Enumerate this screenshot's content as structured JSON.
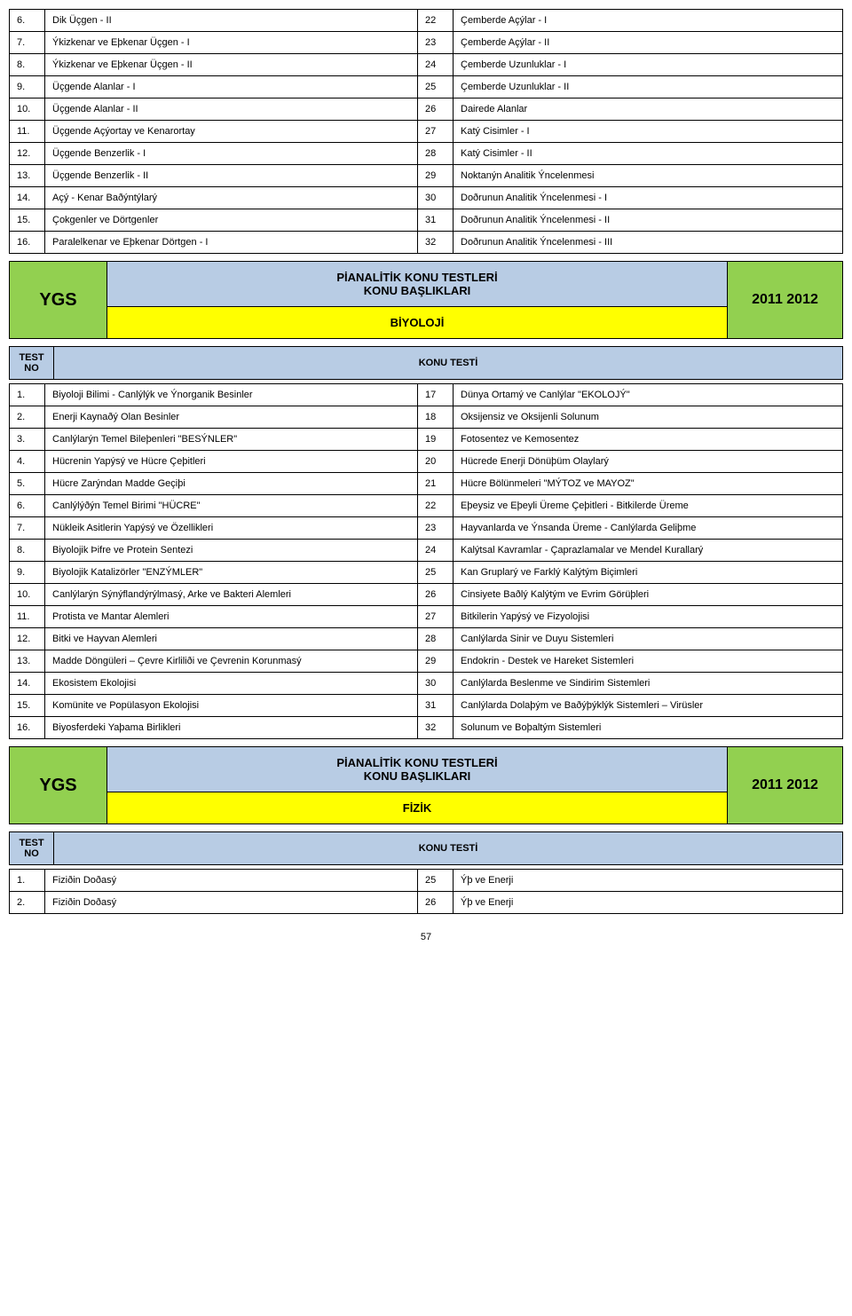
{
  "colors": {
    "green": "#92d050",
    "blue": "#b8cce4",
    "yellow": "#ffff00",
    "white": "#ffffff",
    "black": "#000000"
  },
  "geometry": {
    "rows": [
      {
        "n": "6.",
        "left": "Dik Üçgen - II",
        "r": "22",
        "right": "Çemberde Açýlar - I"
      },
      {
        "n": "7.",
        "left": "Ýkizkenar ve Eþkenar Üçgen - I",
        "r": "23",
        "right": "Çemberde Açýlar - II"
      },
      {
        "n": "8.",
        "left": "Ýkizkenar ve Eþkenar Üçgen - II",
        "r": "24",
        "right": "Çemberde Uzunluklar - I"
      },
      {
        "n": "9.",
        "left": "Üçgende Alanlar - I",
        "r": "25",
        "right": "Çemberde Uzunluklar - II"
      },
      {
        "n": "10.",
        "left": "Üçgende Alanlar - II",
        "r": "26",
        "right": "Dairede Alanlar"
      },
      {
        "n": "11.",
        "left": "Üçgende Açýortay ve Kenarortay",
        "r": "27",
        "right": "Katý Cisimler - I"
      },
      {
        "n": "12.",
        "left": "Üçgende Benzerlik - I",
        "r": "28",
        "right": "Katý Cisimler - II"
      },
      {
        "n": "13.",
        "left": "Üçgende Benzerlik - II",
        "r": "29",
        "right": "Noktanýn Analitik Ýncelenmesi"
      },
      {
        "n": "14.",
        "left": "Açý - Kenar Baðýntýlarý",
        "r": "30",
        "right": "Doðrunun Analitik Ýncelenmesi - I"
      },
      {
        "n": "15.",
        "left": "Çokgenler ve Dörtgenler",
        "r": "31",
        "right": "Doðrunun Analitik Ýncelenmesi - II"
      },
      {
        "n": "16.",
        "left": "Paralelkenar ve Eþkenar Dörtgen - I",
        "r": "32",
        "right": "Doðrunun Analitik Ýncelenmesi - III"
      }
    ]
  },
  "section1": {
    "tag": "YGS",
    "title": "PİANALİTİK KONU TESTLERİ",
    "subtitle": "KONU BAŞLIKLARI",
    "subject": "BİYOLOJİ",
    "year": "2011 2012",
    "testno": "TEST NO",
    "konutest": "KONU TESTİ"
  },
  "biology": {
    "rows": [
      {
        "n": "1.",
        "left": "Biyoloji Bilimi - Canlýlýk ve Ýnorganik Besinler",
        "r": "17",
        "right": "Dünya Ortamý ve Canlýlar \"EKOLOJÝ\""
      },
      {
        "n": "2.",
        "left": "Enerji Kaynaðý Olan Besinler",
        "r": "18",
        "right": "Oksijensiz ve Oksijenli Solunum"
      },
      {
        "n": "3.",
        "left": "Canlýlarýn Temel Bileþenleri \"BESÝNLER\"",
        "r": "19",
        "right": "Fotosentez ve Kemosentez"
      },
      {
        "n": "4.",
        "left": "Hücrenin Yapýsý ve Hücre Çeþitleri",
        "r": "20",
        "right": "Hücrede Enerji Dönüþüm Olaylarý"
      },
      {
        "n": "5.",
        "left": "Hücre Zarýndan Madde Geçiþi",
        "r": "21",
        "right": "Hücre Bölünmeleri \"MÝTOZ ve MAYOZ\""
      },
      {
        "n": "6.",
        "left": "Canlýlýðýn Temel Birimi \"HÜCRE\"",
        "r": "22",
        "right": "Eþeysiz ve Eþeyli Üreme Çeþitleri - Bitkilerde Üreme"
      },
      {
        "n": "7.",
        "left": "Nükleik Asitlerin Yapýsý ve Özellikleri",
        "r": "23",
        "right": "Hayvanlarda ve Ýnsanda Üreme - Canlýlarda Geliþme"
      },
      {
        "n": "8.",
        "left": "Biyolojik Þifre ve Protein Sentezi",
        "r": "24",
        "right": "Kalýtsal Kavramlar - Çaprazlamalar ve Mendel Kurallarý"
      },
      {
        "n": "9.",
        "left": "Biyolojik Katalizörler \"ENZÝMLER\"",
        "r": "25",
        "right": "Kan Gruplarý ve Farklý Kalýtým Biçimleri"
      },
      {
        "n": "10.",
        "left": "Canlýlarýn Sýnýflandýrýlmasý, Arke ve Bakteri Alemleri",
        "r": "26",
        "right": "Cinsiyete Baðlý Kalýtým ve Evrim Görüþleri"
      },
      {
        "n": "11.",
        "left": "Protista ve Mantar Alemleri",
        "r": "27",
        "right": "Bitkilerin Yapýsý ve Fizyolojisi"
      },
      {
        "n": "12.",
        "left": "Bitki ve Hayvan Alemleri",
        "r": "28",
        "right": "Canlýlarda Sinir ve Duyu Sistemleri"
      },
      {
        "n": "13.",
        "left": "Madde Döngüleri – Çevre Kirliliði ve Çevrenin Korunmasý",
        "r": "29",
        "right": "Endokrin - Destek ve Hareket Sistemleri"
      },
      {
        "n": "14.",
        "left": "Ekosistem Ekolojisi",
        "r": "30",
        "right": "Canlýlarda Beslenme ve Sindirim Sistemleri"
      },
      {
        "n": "15.",
        "left": "Komünite ve Popülasyon Ekolojisi",
        "r": "31",
        "right": "Canlýlarda Dolaþým ve Baðýþýklýk Sistemleri – Virüsler"
      },
      {
        "n": "16.",
        "left": "Biyosferdeki Yaþama Birlikleri",
        "r": "32",
        "right": "Solunum ve Boþaltým Sistemleri"
      }
    ]
  },
  "section2": {
    "tag": "YGS",
    "title": "PİANALİTİK KONU TESTLERİ",
    "subtitle": "KONU BAŞLIKLARI",
    "subject": "FİZİK",
    "year": "2011 2012",
    "testno": "TEST NO",
    "konutest": "KONU TESTİ"
  },
  "physics": {
    "rows": [
      {
        "n": "1.",
        "left": "Fiziðin Doðasý",
        "r": "25",
        "right": "Ýþ ve Enerji"
      },
      {
        "n": "2.",
        "left": "Fiziðin Doðasý",
        "r": "26",
        "right": "Ýþ ve Enerji"
      }
    ]
  },
  "pagenum": "57"
}
